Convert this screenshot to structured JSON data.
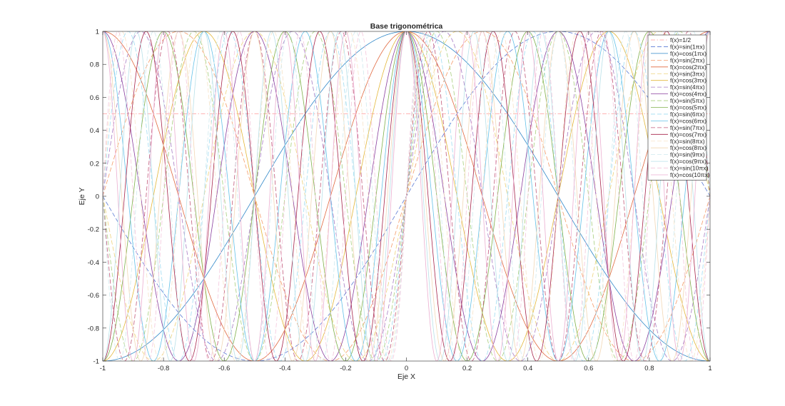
{
  "chart_data": {
    "type": "line",
    "title": "Base trigonométrica",
    "xlabel": "Eje X",
    "ylabel": "Eje Y",
    "xlim": [
      -1,
      1
    ],
    "ylim": [
      -1,
      1
    ],
    "xticks": [
      -1,
      -0.8,
      -0.6,
      -0.4,
      -0.2,
      0,
      0.2,
      0.4,
      0.6,
      0.8,
      1
    ],
    "xtick_labels": [
      "-1",
      "-0.8",
      "-0.6",
      "-0.4",
      "-0.2",
      "0",
      "0.2",
      "0.4",
      "0.6",
      "0.8",
      "1"
    ],
    "yticks": [
      -1,
      -0.8,
      -0.6,
      -0.4,
      -0.2,
      0,
      0.2,
      0.4,
      0.6,
      0.8,
      1
    ],
    "ytick_labels": [
      "-1",
      "-0.8",
      "-0.6",
      "-0.4",
      "-0.2",
      "0",
      "0.2",
      "0.4",
      "0.6",
      "0.8",
      "1"
    ],
    "grid": false,
    "legend_position": "top-right",
    "series": [
      {
        "name": "f(x)=1/2",
        "func": "const",
        "k": 0,
        "value": 0.5,
        "color": "#ff9999",
        "dash": "dashdot"
      },
      {
        "name": "f(x)=sin(1πx)",
        "func": "sin",
        "k": 1,
        "color": "#5b7bd5",
        "dash": "dash"
      },
      {
        "name": "f(x)=cos(1πx)",
        "func": "cos",
        "k": 1,
        "color": "#2f87c8",
        "dash": "solid"
      },
      {
        "name": "f(x)=sin(2πx)",
        "func": "sin",
        "k": 2,
        "color": "#f59c6a",
        "dash": "dash"
      },
      {
        "name": "f(x)=cos(2πx)",
        "func": "cos",
        "k": 2,
        "color": "#e0683f",
        "dash": "solid"
      },
      {
        "name": "f(x)=sin(3πx)",
        "func": "sin",
        "k": 3,
        "color": "#eed27a",
        "dash": "dash"
      },
      {
        "name": "f(x)=cos(3πx)",
        "func": "cos",
        "k": 3,
        "color": "#e3b73a",
        "dash": "solid"
      },
      {
        "name": "f(x)=sin(4πx)",
        "func": "sin",
        "k": 4,
        "color": "#a77cc4",
        "dash": "dash"
      },
      {
        "name": "f(x)=cos(4πx)",
        "func": "cos",
        "k": 4,
        "color": "#8a3f9e",
        "dash": "solid"
      },
      {
        "name": "f(x)=sin(5πx)",
        "func": "sin",
        "k": 5,
        "color": "#a8cf7d",
        "dash": "dash"
      },
      {
        "name": "f(x)=cos(5πx)",
        "func": "cos",
        "k": 5,
        "color": "#7fb04a",
        "dash": "solid"
      },
      {
        "name": "f(x)=sin(6πx)",
        "func": "sin",
        "k": 6,
        "color": "#9fdcf2",
        "dash": "dash"
      },
      {
        "name": "f(x)=cos(6πx)",
        "func": "cos",
        "k": 6,
        "color": "#63c1e8",
        "dash": "solid"
      },
      {
        "name": "f(x)=sin(7πx)",
        "func": "sin",
        "k": 7,
        "color": "#c25a7a",
        "dash": "dash"
      },
      {
        "name": "f(x)=cos(7πx)",
        "func": "cos",
        "k": 7,
        "color": "#a6244a",
        "dash": "solid"
      },
      {
        "name": "f(x)=sin(8πx)",
        "func": "sin",
        "k": 8,
        "color": "#f7e3c8",
        "dash": "dash"
      },
      {
        "name": "f(x)=cos(8πx)",
        "func": "cos",
        "k": 8,
        "color": "#f2d7b5",
        "dash": "solid"
      },
      {
        "name": "f(x)=sin(9πx)",
        "func": "sin",
        "k": 9,
        "color": "#cfe9ee",
        "dash": "dash"
      },
      {
        "name": "f(x)=cos(9πx)",
        "func": "cos",
        "k": 9,
        "color": "#b8e0e8",
        "dash": "solid"
      },
      {
        "name": "f(x)=sin(10πx)",
        "func": "sin",
        "k": 10,
        "color": "#f4c6dc",
        "dash": "dash"
      },
      {
        "name": "f(x)=cos(10πx)",
        "func": "cos",
        "k": 10,
        "color": "#ebaed0",
        "dash": "solid"
      }
    ]
  }
}
